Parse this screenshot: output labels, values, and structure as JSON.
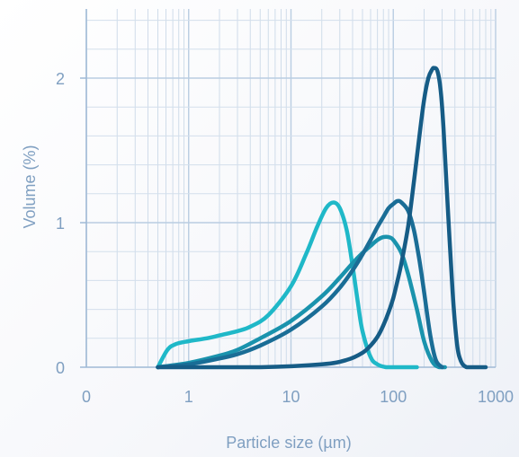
{
  "chart_data": {
    "type": "line",
    "title": "",
    "xlabel": "Particle size (µm)",
    "ylabel": "Volume (%)",
    "x_scale": "log",
    "xlim": [
      0.1,
      1000
    ],
    "ylim": [
      0,
      2.5
    ],
    "x_ticks": [
      {
        "value": 0.1,
        "label": "0"
      },
      {
        "value": 1,
        "label": "1"
      },
      {
        "value": 10,
        "label": "10"
      },
      {
        "value": 100,
        "label": "100"
      },
      {
        "value": 1000,
        "label": "1000"
      }
    ],
    "y_ticks": [
      {
        "value": 0,
        "label": "0"
      },
      {
        "value": 1,
        "label": "1"
      },
      {
        "value": 2,
        "label": "2"
      }
    ],
    "grid": true,
    "series": [
      {
        "color": "#1fb8c8",
        "x": [
          0.5,
          0.62,
          0.75,
          1,
          1.5,
          2,
          3,
          4,
          6,
          10,
          14,
          18,
          22,
          26,
          30,
          35,
          40,
          45,
          50,
          60,
          70,
          85,
          100,
          130,
          170
        ],
        "y": [
          0,
          0.12,
          0.16,
          0.18,
          0.2,
          0.22,
          0.25,
          0.28,
          0.36,
          0.56,
          0.78,
          0.97,
          1.1,
          1.14,
          1.1,
          0.95,
          0.7,
          0.45,
          0.25,
          0.07,
          0.02,
          0,
          0,
          0,
          0
        ]
      },
      {
        "color": "#1a93ad",
        "x": [
          0.5,
          1,
          2,
          3,
          5,
          10,
          20,
          30,
          40,
          50,
          60,
          70,
          80,
          90,
          100,
          120,
          140,
          170,
          200,
          240,
          280,
          320
        ],
        "y": [
          0,
          0.03,
          0.08,
          0.12,
          0.2,
          0.32,
          0.49,
          0.62,
          0.72,
          0.79,
          0.84,
          0.88,
          0.9,
          0.9,
          0.88,
          0.79,
          0.64,
          0.4,
          0.18,
          0.04,
          0,
          0
        ]
      },
      {
        "color": "#1a6d96",
        "x": [
          0.5,
          1,
          2,
          3,
          5,
          10,
          20,
          30,
          40,
          50,
          60,
          70,
          80,
          90,
          100,
          110,
          120,
          140,
          160,
          180,
          200,
          230,
          260,
          300
        ],
        "y": [
          0,
          0.02,
          0.06,
          0.09,
          0.15,
          0.26,
          0.42,
          0.55,
          0.67,
          0.78,
          0.88,
          0.97,
          1.04,
          1.1,
          1.13,
          1.15,
          1.14,
          1.08,
          0.94,
          0.74,
          0.52,
          0.22,
          0.05,
          0
        ]
      },
      {
        "color": "#165c86",
        "x": [
          0.5,
          5,
          20,
          35,
          50,
          60,
          70,
          80,
          90,
          100,
          110,
          120,
          140,
          160,
          180,
          200,
          220,
          240,
          250,
          270,
          290,
          310,
          340,
          380,
          420,
          460,
          520,
          600,
          800
        ],
        "y": [
          0,
          0,
          0.02,
          0.05,
          0.1,
          0.15,
          0.21,
          0.29,
          0.38,
          0.48,
          0.6,
          0.72,
          0.98,
          1.3,
          1.6,
          1.85,
          2.0,
          2.06,
          2.07,
          2.05,
          1.92,
          1.65,
          1.12,
          0.52,
          0.16,
          0.04,
          0,
          0,
          0
        ]
      }
    ]
  }
}
